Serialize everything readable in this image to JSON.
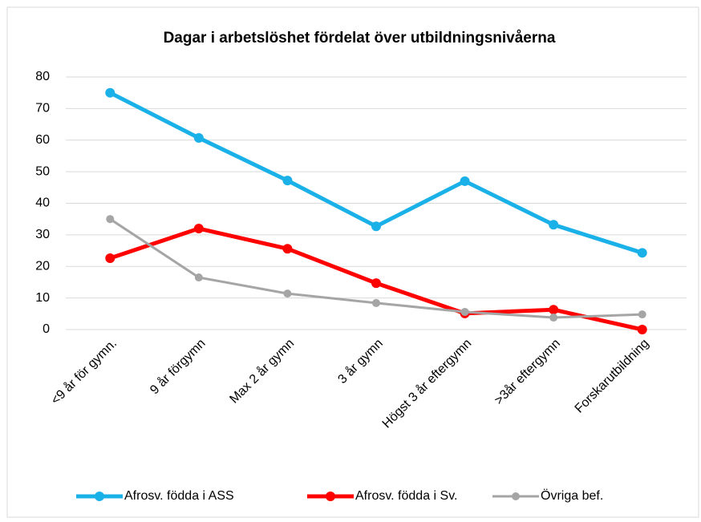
{
  "chart_data": {
    "type": "line",
    "title": "Dagar i arbetslöshet fördelat över utbildningsnivåerna",
    "categories": [
      "<9 år för gymn.",
      "9 år förgymn",
      "Max 2 år gymn",
      "3 år gymn",
      "Högst 3 år eftergymn",
      ">3år eftergymn",
      "Forskarutbildning"
    ],
    "series": [
      {
        "name": "Afrosv. födda i ASS",
        "color": "#1ab0e8",
        "values": [
          75,
          60.7,
          47.2,
          32.7,
          47,
          33.2,
          24.3
        ]
      },
      {
        "name": "Afrosv. födda i Sv.",
        "color": "#ff0000",
        "values": [
          22.6,
          32,
          25.6,
          14.7,
          5.1,
          6.3,
          0
        ]
      },
      {
        "name": "Övriga bef.",
        "color": "#a5a5a5",
        "values": [
          35,
          16.5,
          11.4,
          8.4,
          5.6,
          3.8,
          4.8
        ]
      }
    ],
    "ylim": [
      0,
      80
    ],
    "yticks": [
      0,
      10,
      20,
      30,
      40,
      50,
      60,
      70,
      80
    ],
    "grid": true,
    "legend": "bottom"
  }
}
